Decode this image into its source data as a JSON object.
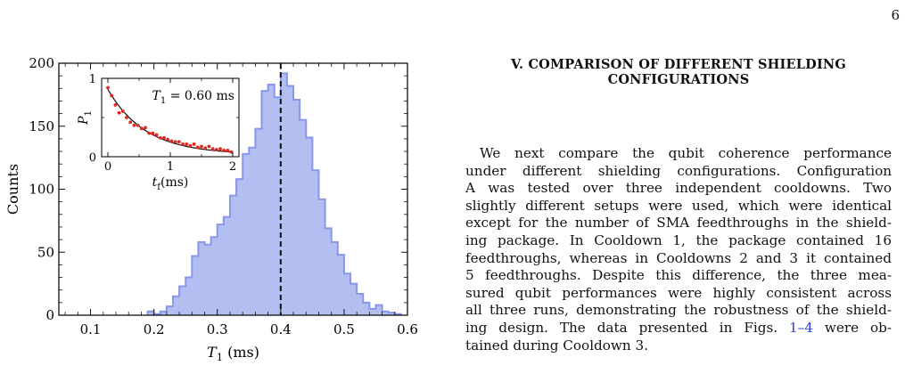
{
  "page_number": "6",
  "section": {
    "heading_line1": "V.   COMPARISON OF DIFFERENT SHIELDING",
    "heading_line2": "CONFIGURATIONS"
  },
  "body": {
    "l1": "We next compare the qubit coherence performance",
    "l2": "under different shielding configurations.  Configuration",
    "l3": "A was tested over three independent cooldowns.  Two",
    "l4": "slightly different setups were used, which were identical",
    "l5": "except for the number of SMA feedthroughs in the shield-",
    "l6": "ing package.  In Cooldown 1, the package contained 16",
    "l7": "feedthroughs, whereas in Cooldowns 2 and 3 it contained",
    "l8": "5 feedthroughs.  Despite this difference, the three mea-",
    "l9": "sured qubit performances were highly consistent across",
    "l10": "all three runs, demonstrating the robustness of the shield-",
    "l11a": "ing design.  The data presented in Figs. ",
    "l11ref": "1–4",
    "l11b": " were ob-",
    "l12": "tained during Cooldown 3."
  },
  "colors": {
    "hist_fill": "#b3bff0",
    "hist_edge": "#8896ec",
    "fit": "#111111",
    "points": "#e0261e"
  },
  "chart_data": [
    {
      "type": "bar",
      "subtype": "histogram",
      "xlabel": "T_1 (ms)",
      "ylabel": "Counts",
      "xlim": [
        0.05,
        0.6
      ],
      "ylim": [
        0,
        200
      ],
      "xticks": [
        0.1,
        0.2,
        0.3,
        0.4,
        0.5,
        0.6
      ],
      "yticks": [
        0,
        50,
        100,
        150,
        200
      ],
      "bin_width": 0.01,
      "bins_start": [
        0.19,
        0.2,
        0.21,
        0.22,
        0.23,
        0.24,
        0.25,
        0.26,
        0.27,
        0.28,
        0.29,
        0.3,
        0.31,
        0.32,
        0.33,
        0.34,
        0.35,
        0.36,
        0.37,
        0.38,
        0.39,
        0.4,
        0.41,
        0.42,
        0.43,
        0.44,
        0.45,
        0.46,
        0.47,
        0.48,
        0.49,
        0.5,
        0.51,
        0.52,
        0.53,
        0.54,
        0.55,
        0.56,
        0.57,
        0.58
      ],
      "values": [
        3,
        1,
        3,
        7,
        15,
        23,
        30,
        47,
        58,
        56,
        62,
        72,
        78,
        95,
        108,
        128,
        133,
        148,
        178,
        183,
        173,
        192,
        182,
        171,
        155,
        141,
        115,
        92,
        69,
        58,
        48,
        33,
        25,
        17,
        10,
        5,
        8,
        3,
        2,
        1
      ],
      "vline": {
        "x": 0.4,
        "style": "dashed"
      },
      "grid": false
    },
    {
      "type": "scatter",
      "xlabel": "t_f(ms)",
      "ylabel": "P_1",
      "annotation": "T_1 = 0.60 ms",
      "xlim": [
        -0.1,
        2.1
      ],
      "ylim": [
        0,
        1.0
      ],
      "xticks": [
        0,
        1,
        2
      ],
      "yticks": [
        0,
        1
      ],
      "x": [
        0,
        0.06,
        0.12,
        0.18,
        0.24,
        0.3,
        0.36,
        0.42,
        0.48,
        0.54,
        0.6,
        0.66,
        0.72,
        0.78,
        0.84,
        0.9,
        0.96,
        1.02,
        1.08,
        1.14,
        1.2,
        1.26,
        1.32,
        1.38,
        1.44,
        1.5,
        1.56,
        1.62,
        1.68,
        1.74,
        1.8,
        1.86,
        1.92,
        1.98
      ],
      "y": [
        0.88,
        0.78,
        0.66,
        0.56,
        0.58,
        0.5,
        0.44,
        0.4,
        0.4,
        0.36,
        0.37,
        0.3,
        0.3,
        0.28,
        0.24,
        0.24,
        0.22,
        0.2,
        0.19,
        0.19,
        0.16,
        0.16,
        0.14,
        0.16,
        0.12,
        0.13,
        0.11,
        0.13,
        0.1,
        0.09,
        0.1,
        0.08,
        0.08,
        0.06
      ],
      "fit": {
        "model": "exponential",
        "T1": 0.6,
        "A": 0.83,
        "B": 0.03
      }
    }
  ]
}
